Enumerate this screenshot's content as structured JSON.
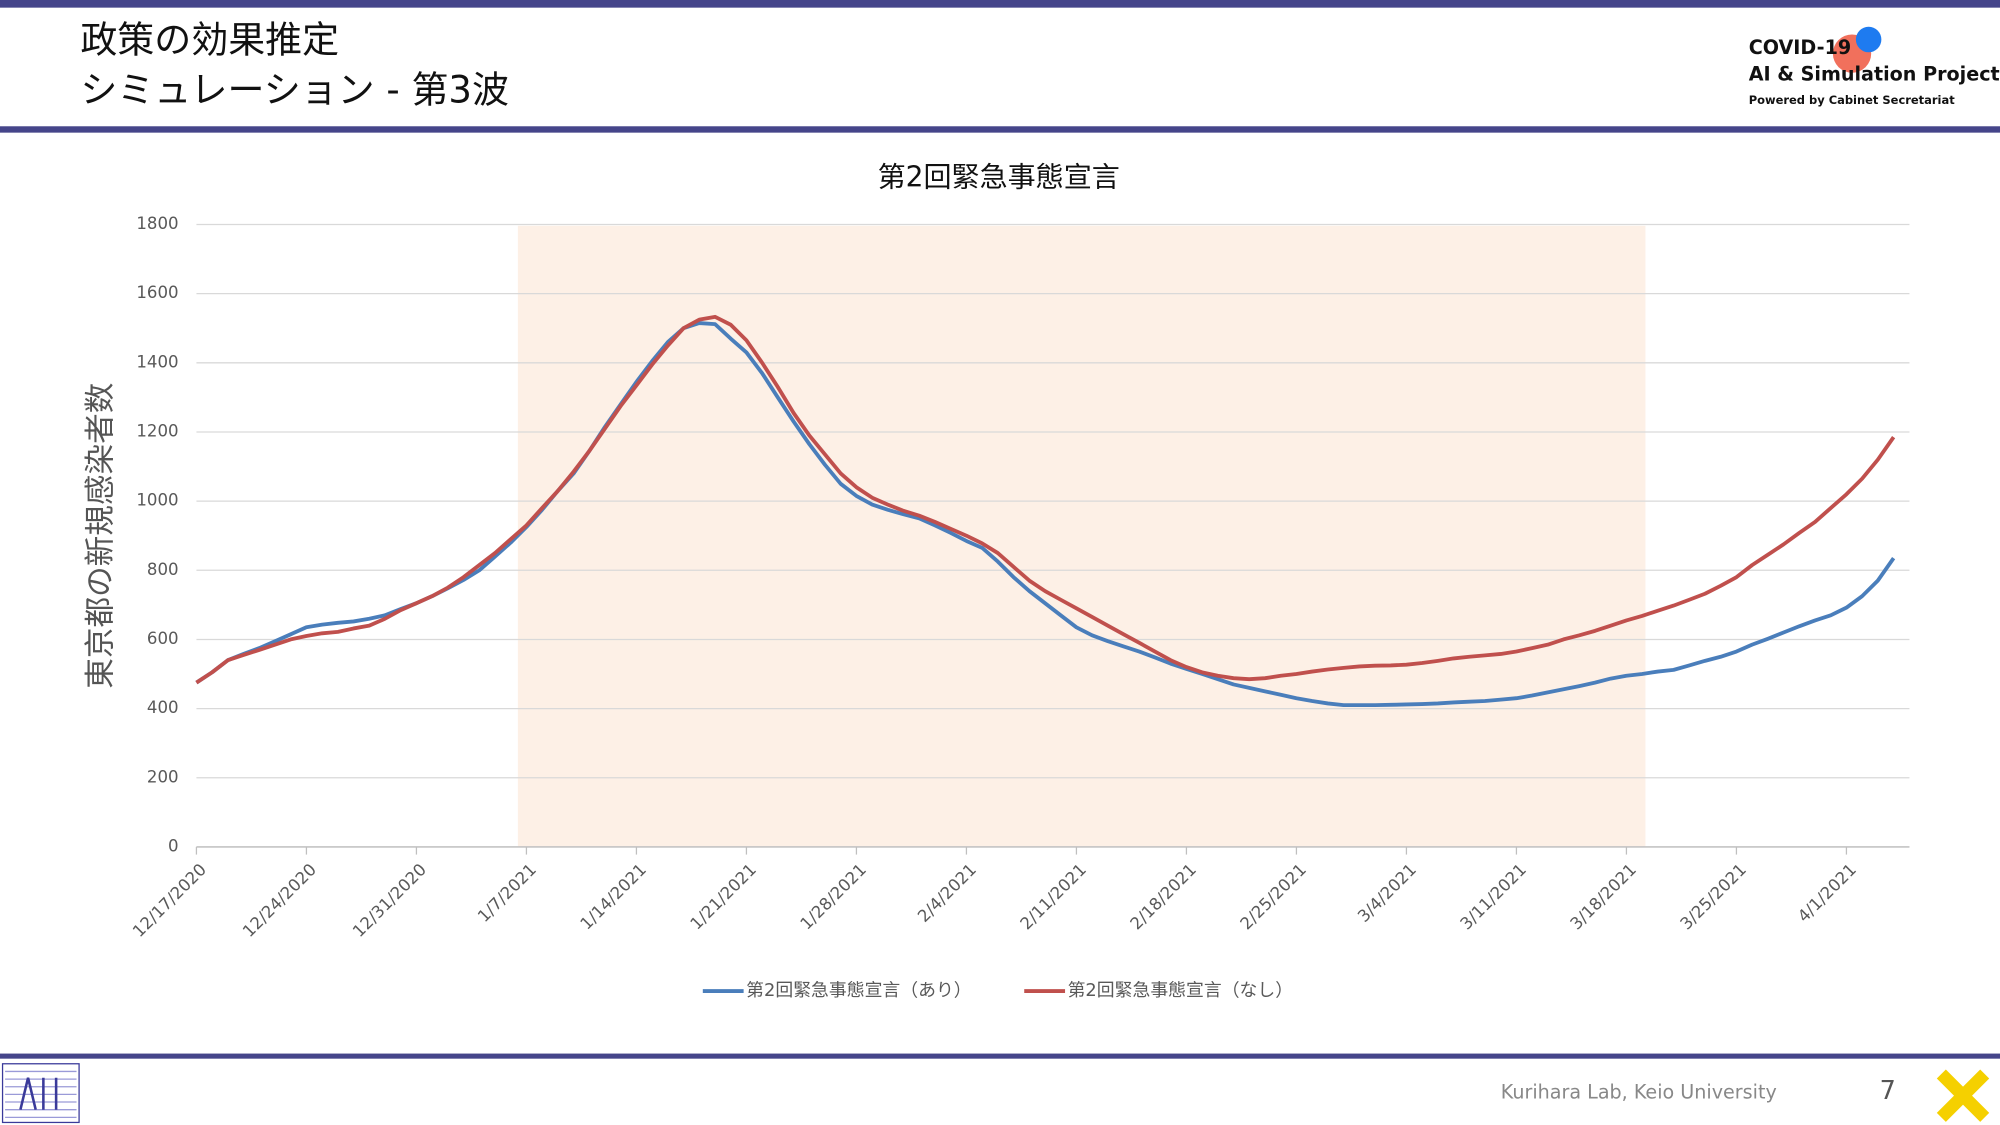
{
  "header": {
    "title_lines": [
      "政策の効果推定",
      "シミュレーション - 第3波"
    ],
    "logo": {
      "name": "COVID-19",
      "project": "AI & Simulation Project",
      "powered": "Powered by Cabinet Secretariat"
    }
  },
  "chart_data": {
    "type": "line",
    "title": "第2回緊急事態宣言",
    "y_label": "東京都の新規感染者数",
    "categories": [
      "12/17/2020",
      null,
      null,
      null,
      null,
      null,
      null,
      "12/24/2020",
      null,
      null,
      null,
      null,
      null,
      null,
      "12/31/2020",
      null,
      null,
      null,
      null,
      null,
      null,
      "1/7/2021",
      null,
      null,
      null,
      null,
      null,
      null,
      "1/14/2021",
      null,
      null,
      null,
      null,
      null,
      null,
      "1/21/2021",
      null,
      null,
      null,
      null,
      null,
      null,
      "1/28/2021",
      null,
      null,
      null,
      null,
      null,
      null,
      "2/4/2021",
      null,
      null,
      null,
      null,
      null,
      null,
      "2/11/2021",
      null,
      null,
      null,
      null,
      null,
      null,
      "2/18/2021",
      null,
      null,
      null,
      null,
      null,
      null,
      "2/25/2021",
      null,
      null,
      null,
      null,
      null,
      null,
      "3/4/2021",
      null,
      null,
      null,
      null,
      null,
      null,
      "3/11/2021",
      null,
      null,
      null,
      null,
      null,
      null,
      "3/18/2021",
      null,
      null,
      null,
      null,
      null,
      null,
      "3/25/2021",
      null,
      null,
      null,
      null,
      null,
      null,
      "4/1/2021",
      null,
      null,
      null
    ],
    "series": [
      {
        "name": "第2回緊急事態宣言（あり）",
        "color": "#4a7ebb",
        "values": [
          475,
          505,
          540,
          558,
          575,
          595,
          615,
          635,
          643,
          648,
          652,
          660,
          670,
          688,
          705,
          725,
          748,
          772,
          800,
          840,
          880,
          925,
          975,
          1030,
          1080,
          1145,
          1215,
          1280,
          1345,
          1405,
          1460,
          1500,
          1515,
          1512,
          1470,
          1430,
          1370,
          1300,
          1230,
          1165,
          1105,
          1050,
          1015,
          990,
          975,
          962,
          950,
          930,
          908,
          885,
          865,
          825,
          780,
          740,
          705,
          670,
          635,
          612,
          595,
          580,
          565,
          548,
          530,
          515,
          500,
          485,
          470,
          460,
          450,
          440,
          430,
          422,
          415,
          410,
          410,
          410,
          411,
          412,
          413,
          415,
          418,
          420,
          422,
          426,
          430,
          438,
          447,
          456,
          465,
          475,
          487,
          495,
          500,
          507,
          512,
          525,
          538,
          550,
          565,
          585,
          602,
          620,
          638,
          655,
          670,
          692,
          725,
          770,
          835
        ]
      },
      {
        "name": "第2回緊急事態宣言（なし）",
        "color": "#c0504d",
        "values": [
          475,
          505,
          540,
          555,
          570,
          585,
          600,
          610,
          618,
          622,
          632,
          640,
          660,
          685,
          705,
          725,
          750,
          780,
          815,
          850,
          890,
          930,
          980,
          1030,
          1085,
          1145,
          1210,
          1275,
          1335,
          1395,
          1450,
          1500,
          1525,
          1533,
          1510,
          1465,
          1400,
          1330,
          1255,
          1190,
          1135,
          1080,
          1040,
          1010,
          990,
          972,
          958,
          940,
          920,
          900,
          878,
          850,
          810,
          770,
          740,
          715,
          690,
          665,
          640,
          615,
          590,
          565,
          540,
          520,
          505,
          495,
          488,
          485,
          488,
          495,
          500,
          507,
          513,
          518,
          522,
          524,
          525,
          527,
          532,
          538,
          545,
          550,
          554,
          558,
          565,
          575,
          585,
          600,
          612,
          625,
          640,
          655,
          668,
          683,
          698,
          715,
          732,
          755,
          780,
          815,
          845,
          875,
          908,
          940,
          980,
          1020,
          1065,
          1120,
          1185
        ]
      }
    ],
    "ylim": [
      0,
      1800
    ],
    "yticks": [
      0,
      200,
      400,
      600,
      800,
      1000,
      1200,
      1400,
      1600,
      1800
    ],
    "grid": true,
    "legend": "bottom"
  },
  "footer": {
    "credit": "Kurihara Lab, Keio University",
    "page": "7"
  }
}
